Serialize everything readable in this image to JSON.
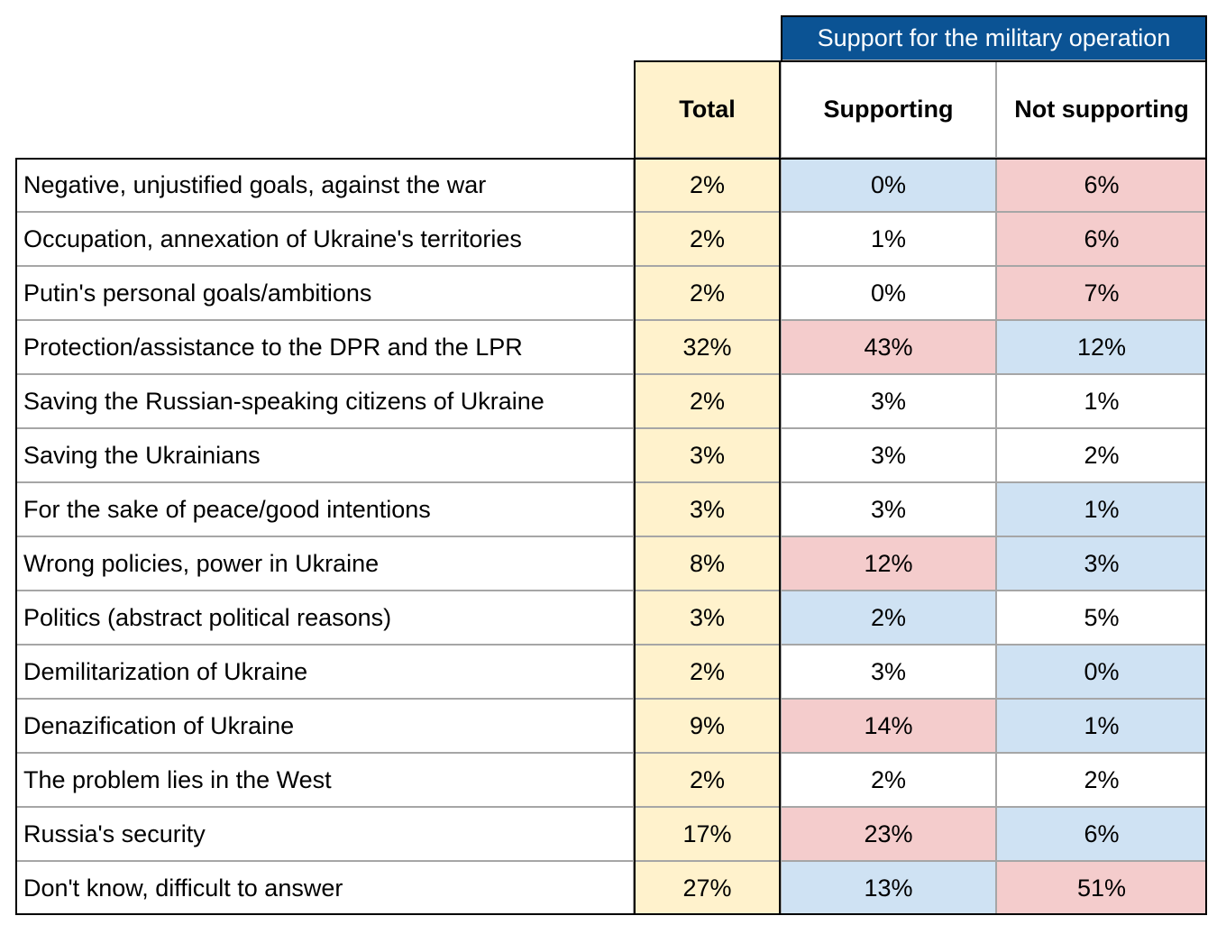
{
  "table": {
    "group_header": "Support for the military operation",
    "columns": [
      "Total",
      "Supporting",
      "Not supporting"
    ],
    "colors": {
      "total": "#fff2cc",
      "high": "#f4cccc",
      "low": "#cfe2f3",
      "group": "#0b5394"
    },
    "rows": [
      {
        "label": "Negative, unjustified goals, against the war",
        "cells": [
          {
            "text": "2%"
          },
          {
            "text": "0%",
            "shade": "low"
          },
          {
            "text": "6%",
            "shade": "high"
          }
        ]
      },
      {
        "label": "Occupation, annexation of Ukraine's territories",
        "cells": [
          {
            "text": "2%"
          },
          {
            "text": "1%"
          },
          {
            "text": "6%",
            "shade": "high"
          }
        ]
      },
      {
        "label": "Putin's personal goals/ambitions",
        "cells": [
          {
            "text": "2%"
          },
          {
            "text": "0%"
          },
          {
            "text": "7%",
            "shade": "high"
          }
        ]
      },
      {
        "label": "Protection/assistance to the DPR and the LPR",
        "cells": [
          {
            "text": "32%"
          },
          {
            "text": "43%",
            "shade": "high"
          },
          {
            "text": "12%",
            "shade": "low"
          }
        ]
      },
      {
        "label": "Saving the Russian-speaking citizens of Ukraine",
        "cells": [
          {
            "text": "2%"
          },
          {
            "text": "3%"
          },
          {
            "text": "1%"
          }
        ]
      },
      {
        "label": "Saving the Ukrainians",
        "cells": [
          {
            "text": "3%"
          },
          {
            "text": "3%"
          },
          {
            "text": "2%"
          }
        ]
      },
      {
        "label": "For the sake of peace/good intentions",
        "cells": [
          {
            "text": "3%"
          },
          {
            "text": "3%"
          },
          {
            "text": "1%",
            "shade": "low"
          }
        ]
      },
      {
        "label": "Wrong policies, power in Ukraine",
        "cells": [
          {
            "text": "8%"
          },
          {
            "text": "12%",
            "shade": "high"
          },
          {
            "text": "3%",
            "shade": "low"
          }
        ]
      },
      {
        "label": "Politics (abstract political reasons)",
        "cells": [
          {
            "text": "3%"
          },
          {
            "text": "2%",
            "shade": "low"
          },
          {
            "text": "5%"
          }
        ]
      },
      {
        "label": "Demilitarization of Ukraine",
        "cells": [
          {
            "text": "2%"
          },
          {
            "text": "3%"
          },
          {
            "text": "0%",
            "shade": "low"
          }
        ]
      },
      {
        "label": "Denazification of Ukraine",
        "cells": [
          {
            "text": "9%"
          },
          {
            "text": "14%",
            "shade": "high"
          },
          {
            "text": "1%",
            "shade": "low"
          }
        ]
      },
      {
        "label": "The problem lies in the West",
        "cells": [
          {
            "text": "2%"
          },
          {
            "text": "2%"
          },
          {
            "text": "2%"
          }
        ]
      },
      {
        "label": "Russia's security",
        "cells": [
          {
            "text": "17%"
          },
          {
            "text": "23%",
            "shade": "high"
          },
          {
            "text": "6%",
            "shade": "low"
          }
        ]
      },
      {
        "label": "Don't know, difficult to answer",
        "cells": [
          {
            "text": "27%"
          },
          {
            "text": "13%",
            "shade": "low"
          },
          {
            "text": "51%",
            "shade": "high"
          }
        ]
      }
    ]
  }
}
